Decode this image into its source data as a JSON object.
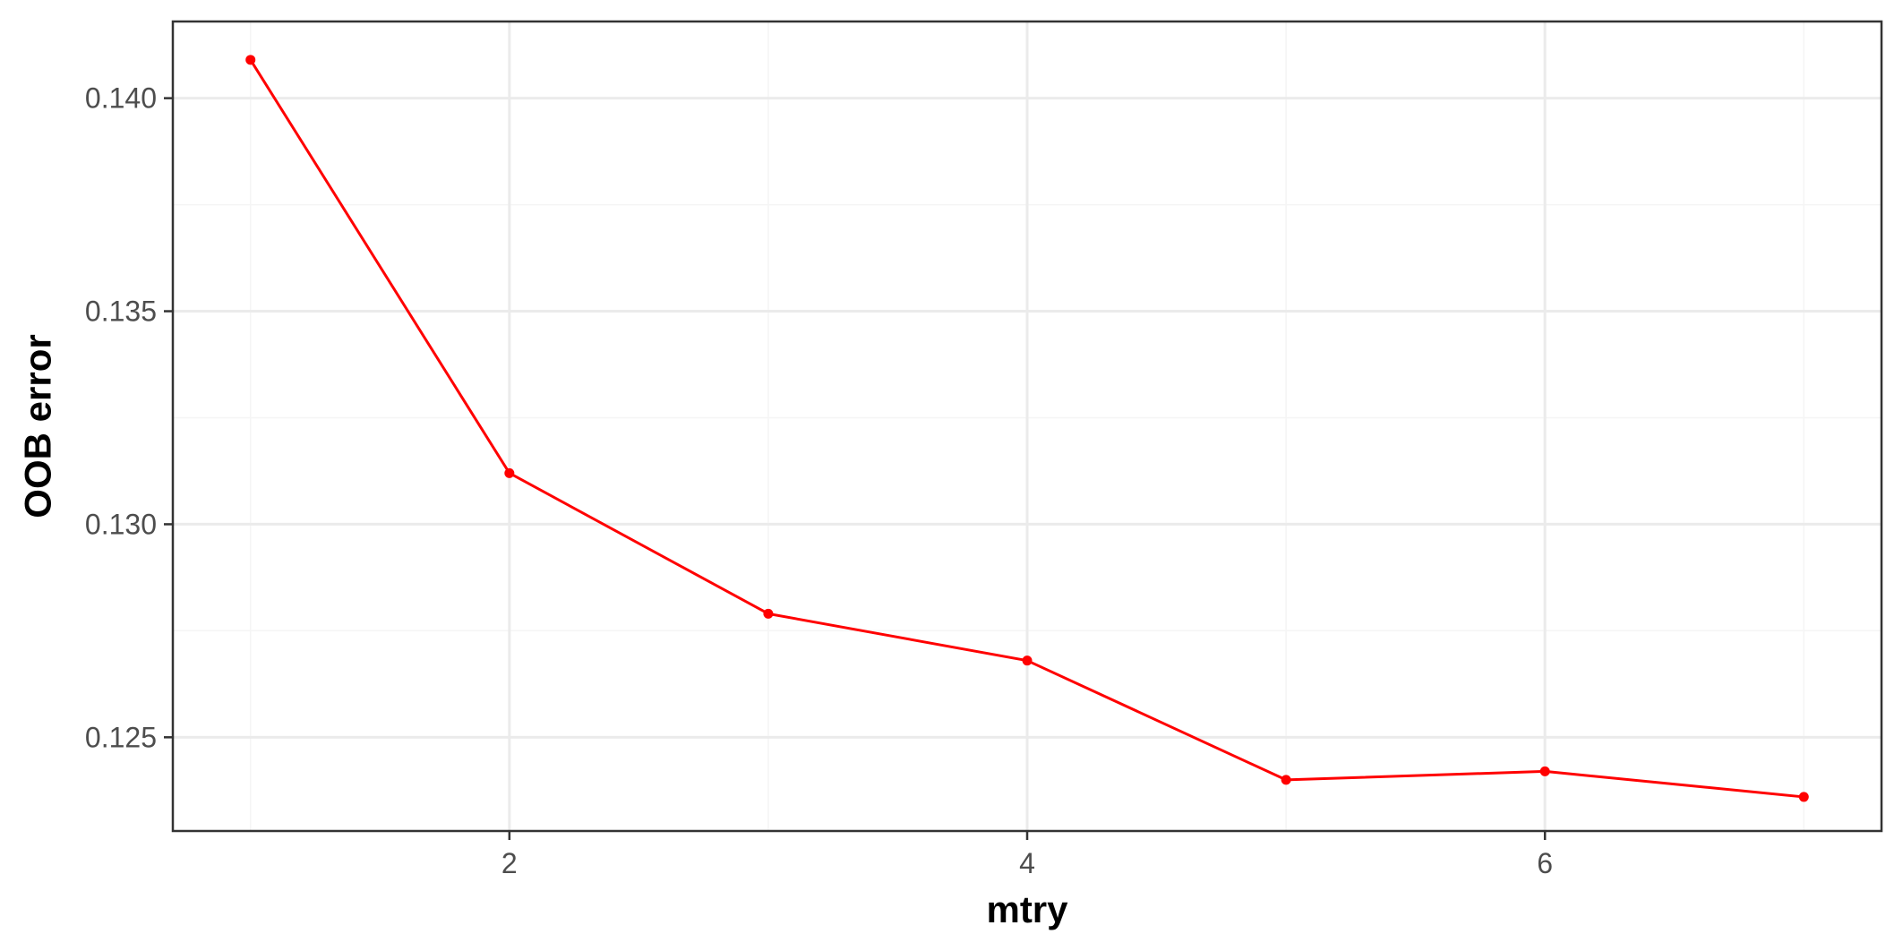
{
  "chart_data": {
    "type": "line",
    "title": "",
    "xlabel": "mtry",
    "ylabel": "OOB error",
    "x": [
      1,
      2,
      3,
      4,
      5,
      6,
      7
    ],
    "series": [
      {
        "values": [
          0.1409,
          0.1312,
          0.1279,
          0.1268,
          0.124,
          0.1242,
          0.1236
        ],
        "color": "#ff0000"
      }
    ],
    "xlim": [
      0.7,
      7.3
    ],
    "ylim": [
      0.1228,
      0.1418
    ],
    "x_ticks": [
      2,
      4,
      6
    ],
    "x_tick_labels": [
      "2",
      "4",
      "6"
    ],
    "x_minor_ticks": [
      1,
      3,
      5,
      7
    ],
    "y_ticks": [
      0.125,
      0.13,
      0.135,
      0.14
    ],
    "y_tick_labels": [
      "0.125",
      "0.130",
      "0.135",
      "0.140"
    ],
    "y_minor_ticks": [
      0.1275,
      0.1325,
      0.1375
    ],
    "grid": true,
    "legend": "none",
    "colors": {
      "panel_border": "#333333",
      "grid_major": "#ebebeb",
      "grid_minor": "#f5f5f5",
      "tick_text": "#4d4d4d",
      "axis_title": "#000000"
    }
  }
}
